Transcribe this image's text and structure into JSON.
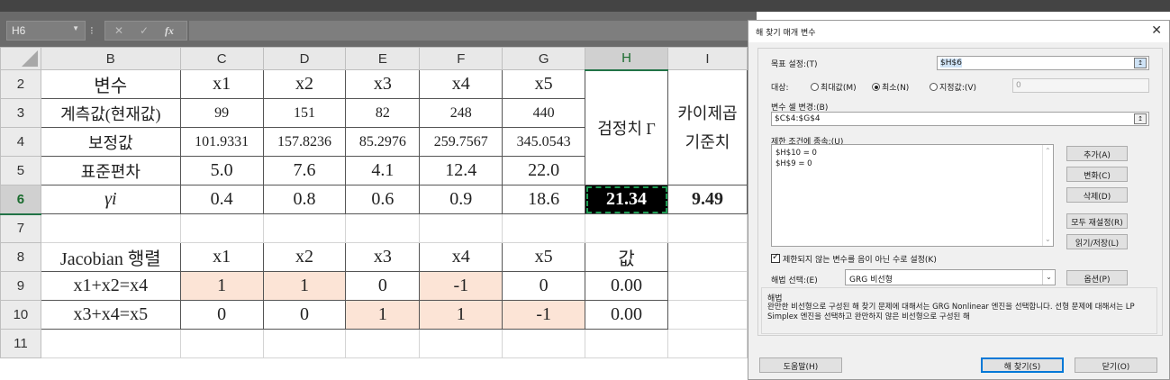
{
  "formula_bar": {
    "name_box": "H6",
    "separator": "⁝",
    "cancel_glyph": "✕",
    "confirm_glyph": "✓",
    "fx_label": "fx",
    "formula": ""
  },
  "sheet": {
    "columns": [
      "B",
      "C",
      "D",
      "E",
      "F",
      "G",
      "H",
      "I"
    ],
    "row_numbers": [
      "2",
      "3",
      "4",
      "5",
      "6",
      "7",
      "8",
      "9",
      "10",
      "11"
    ],
    "vars_label": "변수",
    "measured_label": "계측값(현재값)",
    "corrected_label": "보정값",
    "stddev_label": "표준편차",
    "gamma_label": "γi",
    "x_headers": [
      "x1",
      "x2",
      "x3",
      "x4",
      "x5"
    ],
    "measured": [
      "99",
      "151",
      "82",
      "248",
      "440"
    ],
    "corrected": [
      "101.9331",
      "157.8236",
      "85.2976",
      "259.7567",
      "345.0543"
    ],
    "stddev": [
      "5.0",
      "7.6",
      "4.1",
      "12.4",
      "22.0"
    ],
    "gamma": [
      "0.4",
      "0.8",
      "0.6",
      "0.9",
      "18.6"
    ],
    "test_stat_label": "검정치 Γ",
    "chi_label_line1": "카이제곱",
    "chi_label_line2": "기준치",
    "test_value": "21.34",
    "chi_value": "9.49",
    "jacobian_label": "Jacobian 행렬",
    "value_header": "값",
    "eq1_label": "x1+x2=x4",
    "eq1": [
      "1",
      "1",
      "0",
      "-1",
      "0"
    ],
    "eq1_value": "0.00",
    "eq2_label": "x3+x4=x5",
    "eq2": [
      "0",
      "0",
      "1",
      "1",
      "-1"
    ],
    "eq2_value": "0.00"
  },
  "dialog": {
    "title": "해 찾기 매개 변수",
    "close_glyph": "✕",
    "objective_label": "목표 설정:(T)",
    "objective_value": "$H$6",
    "to_label": "대상:",
    "radio_max": "최대값(M)",
    "radio_min": "최소(N)",
    "radio_value": "지정값:(V)",
    "value_of": "0",
    "changing_label": "변수 셀 변경:(B)",
    "changing_value": "$C$4:$G$4",
    "constraints_label": "제한 조건에 종속:(U)",
    "constraints": [
      "$H$10 = 0",
      "$H$9 = 0"
    ],
    "btn_add": "추가(A)",
    "btn_change": "변화(C)",
    "btn_delete": "삭제(D)",
    "btn_reset": "모두 재설정(R)",
    "btn_load": "읽기/저장(L)",
    "nonneg_label": "제한되지 않는 변수를 음이 아닌 수로 설정(K)",
    "method_label": "해법 선택:(E)",
    "method_value": "GRG 비선형",
    "btn_options": "옵션(P)",
    "method_title": "해법",
    "method_desc": "완만한 비선형으로 구성된 해 찾기 문제에 대해서는 GRG Nonlinear 엔진을 선택합니다. 선형 문제에 대해서는 LP Simplex 엔진을 선택하고 완만하지 않은 비선형으로 구성된 해",
    "btn_help": "도움말(H)",
    "btn_solve": "해 찾기(S)",
    "btn_close": "닫기(O)",
    "icon_picker": "↥"
  },
  "colors": {
    "peach": "#fce4d6",
    "active_fill": "#000000",
    "excel_green": "#217346"
  }
}
